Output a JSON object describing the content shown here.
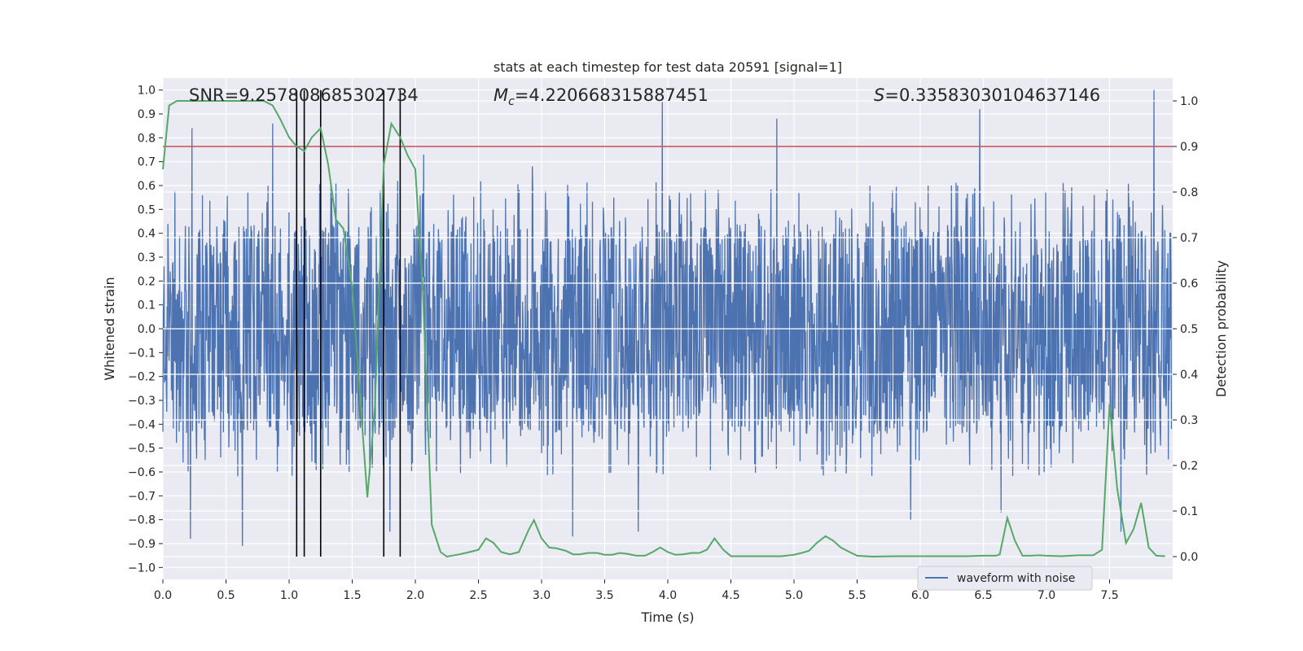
{
  "chart_data": {
    "type": "line",
    "title": "stats at each timestep for test data 20591 [signal=1]",
    "xlabel": "Time (s)",
    "ylabel": "Whitened strain",
    "y2label": "Detection probability",
    "xlim": [
      0.0,
      8.0
    ],
    "ylim": [
      -1.05,
      1.05
    ],
    "y2lim": [
      -0.05,
      1.05
    ],
    "x_ticks": [
      "0.0",
      "0.5",
      "1.0",
      "1.5",
      "2.0",
      "2.5",
      "3.0",
      "3.5",
      "4.0",
      "4.5",
      "5.0",
      "5.5",
      "6.0",
      "6.5",
      "7.0",
      "7.5"
    ],
    "y_ticks": [
      "-1.0",
      "-0.9",
      "-0.8",
      "-0.7",
      "-0.6",
      "-0.5",
      "-0.4",
      "-0.3",
      "-0.2",
      "-0.1",
      "0.0",
      "0.1",
      "0.2",
      "0.3",
      "0.4",
      "0.5",
      "0.6",
      "0.7",
      "0.8",
      "0.9",
      "1.0"
    ],
    "y2_ticks": [
      "0.0",
      "0.1",
      "0.2",
      "0.3",
      "0.4",
      "0.5",
      "0.6",
      "0.7",
      "0.8",
      "0.9",
      "1.0"
    ],
    "grid": true,
    "legend": {
      "placement": "lower-right",
      "entries": [
        "waveform with noise"
      ]
    },
    "annotations": {
      "snr": "SNR=9.257808685302734",
      "mc_symbol": "M",
      "mc_sub": "c",
      "mc_value": "=4.220668315887451",
      "s_symbol": "S",
      "s_value": "=0.33583030104637146"
    },
    "threshold": {
      "value": 0.9,
      "axis": "right",
      "color": "#c44e52"
    },
    "event_lines": [
      1.06,
      1.12,
      1.25,
      1.75,
      1.88
    ],
    "peaks_positive": [
      [
        0.23,
        0.84
      ],
      [
        0.87,
        0.86
      ],
      [
        1.34,
        0.55
      ],
      [
        2.07,
        0.73
      ],
      [
        2.93,
        0.68
      ],
      [
        3.96,
        0.95
      ],
      [
        4.87,
        0.88
      ],
      [
        6.48,
        0.92
      ],
      [
        7.86,
        1.0
      ]
    ],
    "peaks_negative": [
      [
        0.22,
        -0.88
      ],
      [
        0.63,
        -0.91
      ],
      [
        1.8,
        -0.85
      ],
      [
        3.25,
        -0.87
      ],
      [
        3.77,
        -0.85
      ],
      [
        5.93,
        -0.8
      ],
      [
        6.65,
        -0.77
      ],
      [
        7.6,
        -0.85
      ]
    ],
    "series": [
      {
        "name": "waveform with noise",
        "color": "#4c72b0",
        "axis": "left",
        "envelope": "noise, amplitude approx +/-0.45 with spikes"
      },
      {
        "color": "#55a868",
        "axis": "right",
        "points": [
          [
            0.0,
            0.85
          ],
          [
            0.05,
            0.99
          ],
          [
            0.11,
            1.0
          ],
          [
            0.5,
            1.0
          ],
          [
            0.8,
            1.0
          ],
          [
            0.87,
            0.99
          ],
          [
            0.93,
            0.96
          ],
          [
            1.0,
            0.92
          ],
          [
            1.06,
            0.9
          ],
          [
            1.12,
            0.89
          ],
          [
            1.18,
            0.92
          ],
          [
            1.25,
            0.94
          ],
          [
            1.31,
            0.86
          ],
          [
            1.37,
            0.74
          ],
          [
            1.43,
            0.72
          ],
          [
            1.5,
            0.59
          ],
          [
            1.56,
            0.36
          ],
          [
            1.62,
            0.13
          ],
          [
            1.68,
            0.33
          ],
          [
            1.75,
            0.86
          ],
          [
            1.81,
            0.95
          ],
          [
            1.88,
            0.92
          ],
          [
            1.94,
            0.88
          ],
          [
            2.0,
            0.85
          ],
          [
            2.06,
            0.58
          ],
          [
            2.13,
            0.07
          ],
          [
            2.2,
            0.01
          ],
          [
            2.25,
            0.0
          ],
          [
            2.35,
            0.005
          ],
          [
            2.43,
            0.01
          ],
          [
            2.5,
            0.015
          ],
          [
            2.56,
            0.04
          ],
          [
            2.62,
            0.03
          ],
          [
            2.68,
            0.01
          ],
          [
            2.75,
            0.005
          ],
          [
            2.82,
            0.01
          ],
          [
            2.9,
            0.06
          ],
          [
            2.94,
            0.08
          ],
          [
            3.0,
            0.04
          ],
          [
            3.06,
            0.02
          ],
          [
            3.12,
            0.018
          ],
          [
            3.19,
            0.013
          ],
          [
            3.25,
            0.005
          ],
          [
            3.3,
            0.005
          ],
          [
            3.37,
            0.008
          ],
          [
            3.44,
            0.008
          ],
          [
            3.5,
            0.004
          ],
          [
            3.56,
            0.004
          ],
          [
            3.62,
            0.008
          ],
          [
            3.68,
            0.006
          ],
          [
            3.75,
            0.002
          ],
          [
            3.82,
            0.002
          ],
          [
            3.88,
            0.01
          ],
          [
            3.94,
            0.02
          ],
          [
            4.0,
            0.01
          ],
          [
            4.06,
            0.004
          ],
          [
            4.12,
            0.005
          ],
          [
            4.19,
            0.008
          ],
          [
            4.25,
            0.008
          ],
          [
            4.31,
            0.015
          ],
          [
            4.37,
            0.04
          ],
          [
            4.44,
            0.015
          ],
          [
            4.5,
            0.001
          ],
          [
            4.62,
            0.001
          ],
          [
            4.75,
            0.001
          ],
          [
            4.9,
            0.001
          ],
          [
            5.0,
            0.004
          ],
          [
            5.06,
            0.008
          ],
          [
            5.12,
            0.013
          ],
          [
            5.18,
            0.03
          ],
          [
            5.25,
            0.045
          ],
          [
            5.31,
            0.035
          ],
          [
            5.37,
            0.02
          ],
          [
            5.44,
            0.01
          ],
          [
            5.5,
            0.002
          ],
          [
            5.62,
            0.0
          ],
          [
            5.81,
            0.001
          ],
          [
            6.0,
            0.001
          ],
          [
            6.19,
            0.001
          ],
          [
            6.37,
            0.001
          ],
          [
            6.5,
            0.002
          ],
          [
            6.6,
            0.002
          ],
          [
            6.63,
            0.005
          ],
          [
            6.69,
            0.085
          ],
          [
            6.75,
            0.035
          ],
          [
            6.81,
            0.002
          ],
          [
            6.88,
            0.002
          ],
          [
            6.94,
            0.003
          ],
          [
            7.0,
            0.002
          ],
          [
            7.12,
            0.001
          ],
          [
            7.25,
            0.003
          ],
          [
            7.37,
            0.003
          ],
          [
            7.44,
            0.015
          ],
          [
            7.5,
            0.335
          ],
          [
            7.56,
            0.15
          ],
          [
            7.63,
            0.03
          ],
          [
            7.69,
            0.06
          ],
          [
            7.75,
            0.118
          ],
          [
            7.81,
            0.02
          ],
          [
            7.87,
            0.002
          ],
          [
            7.94,
            0.001
          ]
        ]
      }
    ]
  }
}
